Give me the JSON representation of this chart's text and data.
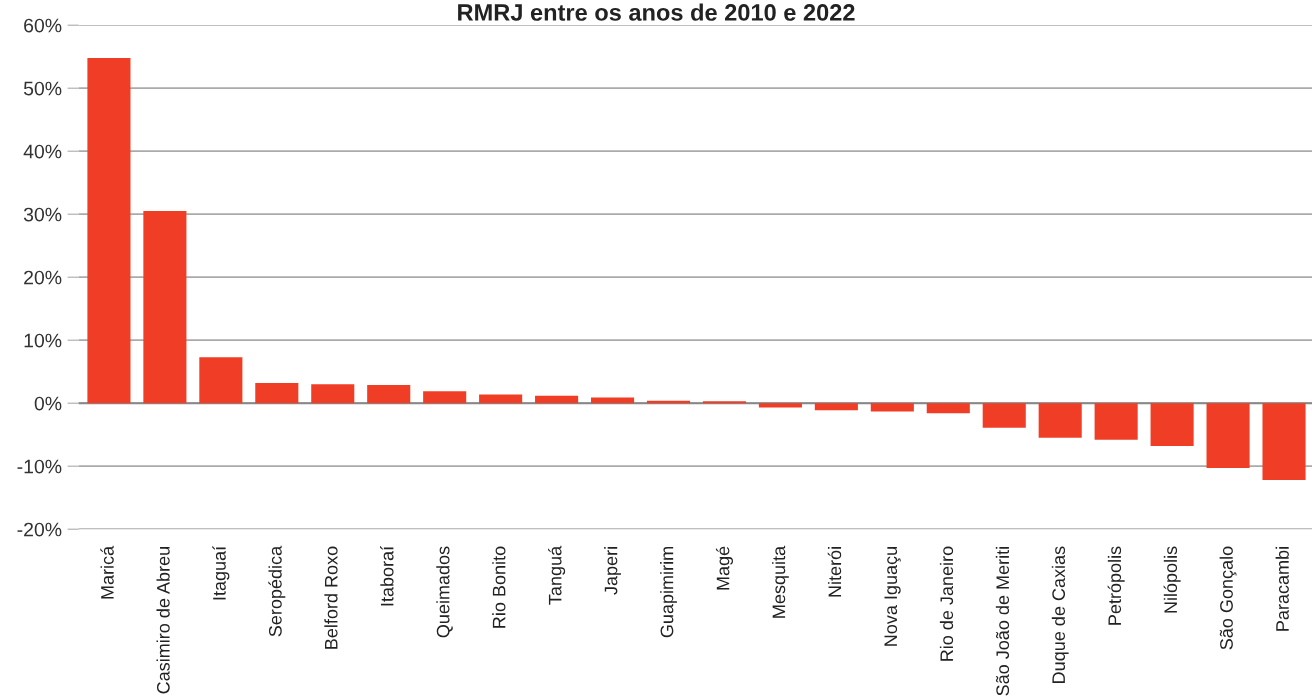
{
  "chart_data": {
    "type": "bar",
    "title": "RMRJ entre os anos de 2010 e 2022",
    "categories": [
      "Maricá",
      "Casimiro de Abreu",
      "Itaguaí",
      "Seropédica",
      "Belford Roxo",
      "Itaboraí",
      "Queimados",
      "Rio Bonito",
      "Tanguá",
      "Japeri",
      "Guapimirim",
      "Magé",
      "Mesquita",
      "Niterói",
      "Nova Iguaçu",
      "Rio de Janeiro",
      "São João de Meriti",
      "Duque de Caxias",
      "Petrópolis",
      "Nilópolis",
      "São Gonçalo",
      "Paracambi"
    ],
    "values": [
      54.8,
      30.5,
      7.3,
      3.2,
      3.0,
      2.9,
      1.9,
      1.4,
      1.2,
      0.9,
      0.4,
      0.3,
      -0.7,
      -1.1,
      -1.3,
      -1.6,
      -3.9,
      -5.5,
      -5.8,
      -6.8,
      -10.3,
      -12.2
    ],
    "color": "#ef3e25",
    "ylim": [
      -20,
      60
    ],
    "yticks": [
      {
        "value": -20,
        "label": "-20%"
      },
      {
        "value": -10,
        "label": "-10%"
      },
      {
        "value": 0,
        "label": "0%"
      },
      {
        "value": 10,
        "label": "10%"
      },
      {
        "value": 20,
        "label": "20%"
      },
      {
        "value": 30,
        "label": "30%"
      },
      {
        "value": 40,
        "label": "40%"
      },
      {
        "value": 50,
        "label": "50%"
      },
      {
        "value": 60,
        "label": "60%"
      }
    ],
    "grid": "y"
  }
}
